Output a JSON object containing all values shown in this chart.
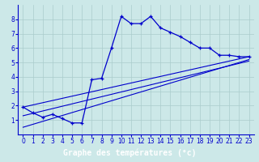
{
  "background_color": "#cce8e8",
  "grid_color": "#aacccc",
  "line_color": "#0000cc",
  "xlim": [
    -0.5,
    23.5
  ],
  "ylim": [
    0,
    9
  ],
  "xticks": [
    0,
    1,
    2,
    3,
    4,
    5,
    6,
    7,
    8,
    9,
    10,
    11,
    12,
    13,
    14,
    15,
    16,
    17,
    18,
    19,
    20,
    21,
    22,
    23
  ],
  "yticks": [
    1,
    2,
    3,
    4,
    5,
    6,
    7,
    8
  ],
  "main_x": [
    0,
    1,
    2,
    3,
    4,
    5,
    6,
    7,
    8,
    9,
    10,
    11,
    12,
    13,
    14,
    15,
    16,
    17,
    18,
    19,
    20,
    21,
    22,
    23
  ],
  "main_y": [
    1.9,
    1.5,
    1.2,
    1.4,
    1.1,
    0.8,
    0.8,
    3.8,
    3.9,
    6.0,
    8.2,
    7.7,
    7.7,
    8.2,
    7.4,
    7.1,
    6.8,
    6.4,
    6.0,
    6.0,
    5.5,
    5.5,
    5.4,
    5.4
  ],
  "line2_x": [
    0,
    23
  ],
  "line2_y": [
    1.9,
    5.4
  ],
  "line3_x": [
    0,
    23
  ],
  "line3_y": [
    1.3,
    5.1
  ],
  "line4_x": [
    0,
    23
  ],
  "line4_y": [
    0.5,
    5.2
  ],
  "xlabel": "Graphe des températures (°c)",
  "xlabel_color": "white",
  "xlabel_bg": "#0000aa",
  "tick_fontsize": 5.5,
  "label_fontsize": 7
}
